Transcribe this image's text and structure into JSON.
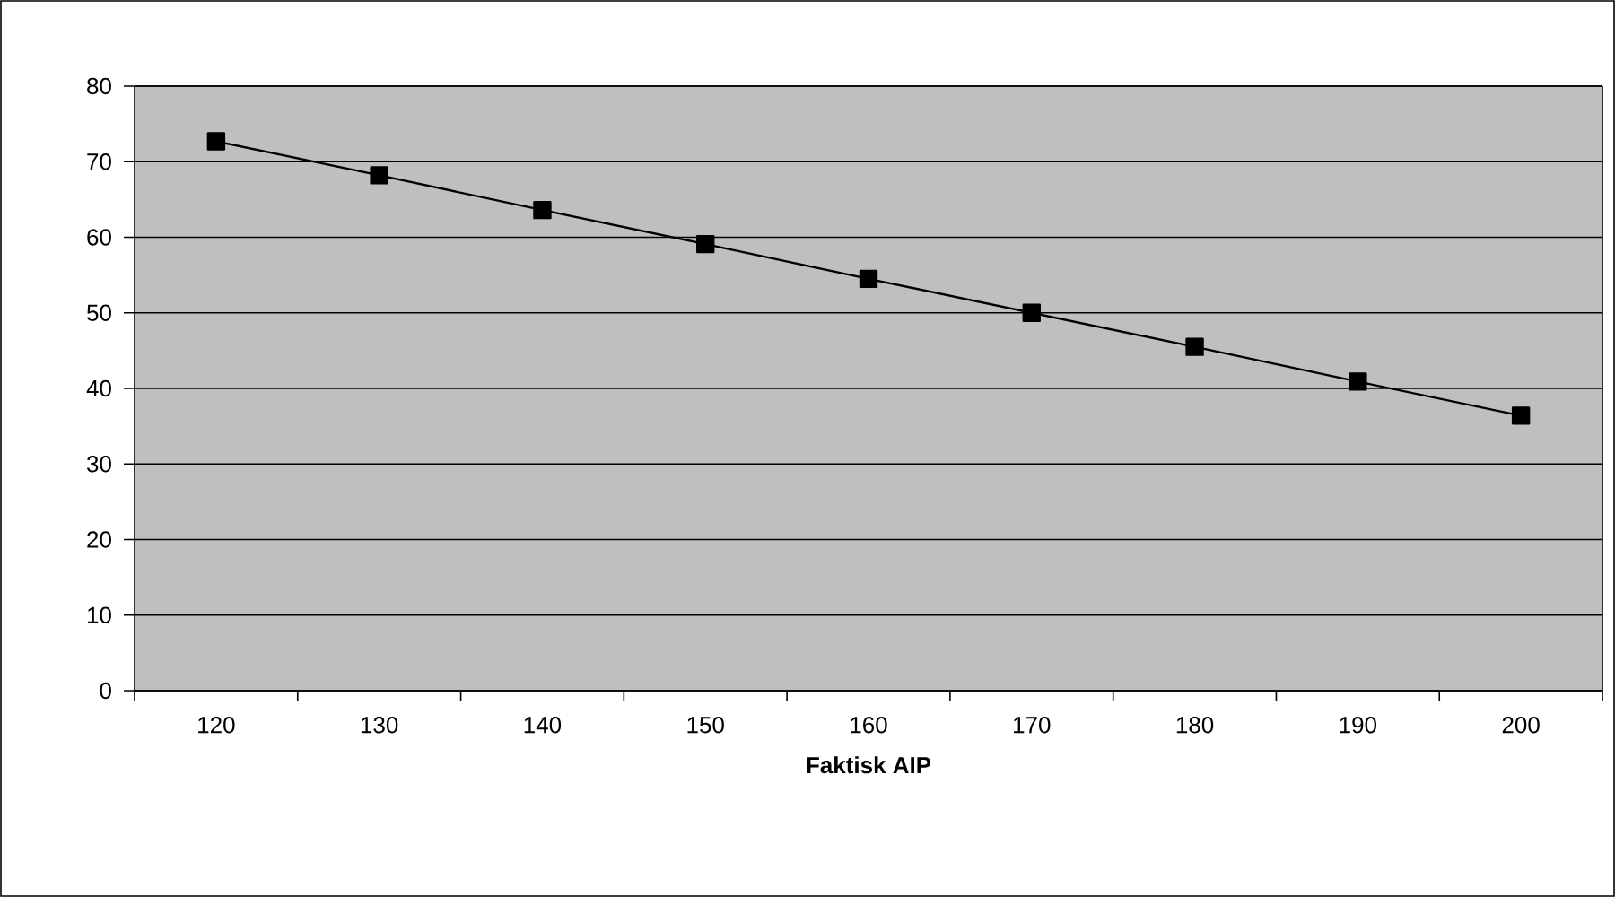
{
  "chart_data": {
    "type": "line",
    "xlabel": "Faktisk AIP",
    "categories": [
      "120",
      "130",
      "140",
      "150",
      "160",
      "170",
      "180",
      "190",
      "200"
    ],
    "series": [
      {
        "color": "#000000",
        "values": [
          72.7,
          68.2,
          63.6,
          59.1,
          54.5,
          50.0,
          45.5,
          40.9,
          36.4
        ]
      }
    ],
    "ylim": [
      0,
      80
    ],
    "yticks": [
      0,
      10,
      20,
      30,
      40,
      50,
      60,
      70,
      80
    ],
    "grid": "y",
    "marker": "square",
    "line_style": "solid"
  }
}
